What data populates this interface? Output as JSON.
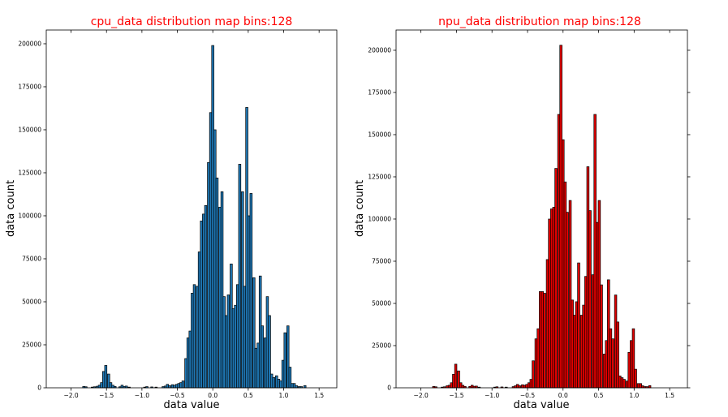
{
  "chart_data": [
    {
      "type": "bar",
      "title": "cpu_data distribution map bins:128",
      "xlabel": "data value",
      "ylabel": "data count",
      "xlim": [
        -2.35,
        1.75
      ],
      "ylim": [
        0,
        208000
      ],
      "xticks": [
        "-2.0",
        "-1.5",
        "-1.0",
        "-0.5",
        "0.0",
        "0.5",
        "1.0",
        "1.5"
      ],
      "yticks": [
        "0",
        "25000",
        "50000",
        "75000",
        "100000",
        "125000",
        "150000",
        "175000",
        "200000"
      ],
      "bar_color": "#1f77b4",
      "bin_width": 0.032,
      "bins": [
        {
          "x": -1.82,
          "y": 800
        },
        {
          "x": -1.79,
          "y": 600
        },
        {
          "x": -1.7,
          "y": 400
        },
        {
          "x": -1.67,
          "y": 600
        },
        {
          "x": -1.63,
          "y": 900
        },
        {
          "x": -1.6,
          "y": 1500
        },
        {
          "x": -1.57,
          "y": 3000
        },
        {
          "x": -1.54,
          "y": 9500
        },
        {
          "x": -1.51,
          "y": 13000
        },
        {
          "x": -1.47,
          "y": 8000
        },
        {
          "x": -1.44,
          "y": 3000
        },
        {
          "x": -1.41,
          "y": 1500
        },
        {
          "x": -1.38,
          "y": 800
        },
        {
          "x": -1.31,
          "y": 600
        },
        {
          "x": -1.28,
          "y": 1500
        },
        {
          "x": -1.25,
          "y": 800
        },
        {
          "x": -1.22,
          "y": 1000
        },
        {
          "x": -1.18,
          "y": 400
        },
        {
          "x": -0.96,
          "y": 400
        },
        {
          "x": -0.93,
          "y": 700
        },
        {
          "x": -0.86,
          "y": 500
        },
        {
          "x": -0.8,
          "y": 400
        },
        {
          "x": -0.7,
          "y": 700
        },
        {
          "x": -0.67,
          "y": 1000
        },
        {
          "x": -0.64,
          "y": 2000
        },
        {
          "x": -0.61,
          "y": 1200
        },
        {
          "x": -0.57,
          "y": 1800
        },
        {
          "x": -0.54,
          "y": 1500
        },
        {
          "x": -0.51,
          "y": 2000
        },
        {
          "x": -0.48,
          "y": 2500
        },
        {
          "x": -0.45,
          "y": 3000
        },
        {
          "x": -0.42,
          "y": 4000
        },
        {
          "x": -0.38,
          "y": 17000
        },
        {
          "x": -0.35,
          "y": 29000
        },
        {
          "x": -0.32,
          "y": 33000
        },
        {
          "x": -0.29,
          "y": 55000
        },
        {
          "x": -0.26,
          "y": 60000
        },
        {
          "x": -0.22,
          "y": 59000
        },
        {
          "x": -0.19,
          "y": 79000
        },
        {
          "x": -0.16,
          "y": 97000
        },
        {
          "x": -0.13,
          "y": 101000
        },
        {
          "x": -0.1,
          "y": 106000
        },
        {
          "x": -0.06,
          "y": 131000
        },
        {
          "x": -0.03,
          "y": 160000
        },
        {
          "x": 0.0,
          "y": 199000
        },
        {
          "x": 0.03,
          "y": 150000
        },
        {
          "x": 0.06,
          "y": 122000
        },
        {
          "x": 0.1,
          "y": 105000
        },
        {
          "x": 0.13,
          "y": 114000
        },
        {
          "x": 0.16,
          "y": 53000
        },
        {
          "x": 0.19,
          "y": 42000
        },
        {
          "x": 0.22,
          "y": 54000
        },
        {
          "x": 0.26,
          "y": 72000
        },
        {
          "x": 0.29,
          "y": 46000
        },
        {
          "x": 0.32,
          "y": 48000
        },
        {
          "x": 0.35,
          "y": 60000
        },
        {
          "x": 0.38,
          "y": 130000
        },
        {
          "x": 0.42,
          "y": 114000
        },
        {
          "x": 0.45,
          "y": 59000
        },
        {
          "x": 0.48,
          "y": 163000
        },
        {
          "x": 0.51,
          "y": 100000
        },
        {
          "x": 0.54,
          "y": 113000
        },
        {
          "x": 0.58,
          "y": 64000
        },
        {
          "x": 0.61,
          "y": 23000
        },
        {
          "x": 0.64,
          "y": 26000
        },
        {
          "x": 0.67,
          "y": 65000
        },
        {
          "x": 0.7,
          "y": 36000
        },
        {
          "x": 0.74,
          "y": 29000
        },
        {
          "x": 0.77,
          "y": 53000
        },
        {
          "x": 0.8,
          "y": 42000
        },
        {
          "x": 0.83,
          "y": 8000
        },
        {
          "x": 0.86,
          "y": 6000
        },
        {
          "x": 0.9,
          "y": 7000
        },
        {
          "x": 0.93,
          "y": 5000
        },
        {
          "x": 0.96,
          "y": 4000
        },
        {
          "x": 0.99,
          "y": 16000
        },
        {
          "x": 1.02,
          "y": 32000
        },
        {
          "x": 1.06,
          "y": 36000
        },
        {
          "x": 1.09,
          "y": 12000
        },
        {
          "x": 1.12,
          "y": 2500
        },
        {
          "x": 1.15,
          "y": 2500
        },
        {
          "x": 1.18,
          "y": 1200
        },
        {
          "x": 1.22,
          "y": 700
        },
        {
          "x": 1.25,
          "y": 700
        },
        {
          "x": 1.3,
          "y": 1300
        }
      ]
    },
    {
      "type": "bar",
      "title": "npu_data distribution map bins:128",
      "xlabel": "data value",
      "ylabel": "data count",
      "xlim": [
        -2.35,
        1.75
      ],
      "ylim": [
        0,
        212000
      ],
      "xticks": [
        "-2.0",
        "-1.5",
        "-1.0",
        "-0.5",
        "0.0",
        "0.5",
        "1.0",
        "1.5"
      ],
      "yticks": [
        "0",
        "25000",
        "50000",
        "75000",
        "100000",
        "125000",
        "150000",
        "175000",
        "200000"
      ],
      "bar_color": "#e00000",
      "bin_width": 0.032,
      "bins": [
        {
          "x": -1.82,
          "y": 800
        },
        {
          "x": -1.79,
          "y": 600
        },
        {
          "x": -1.7,
          "y": 400
        },
        {
          "x": -1.67,
          "y": 600
        },
        {
          "x": -1.63,
          "y": 1200
        },
        {
          "x": -1.6,
          "y": 1500
        },
        {
          "x": -1.57,
          "y": 3000
        },
        {
          "x": -1.54,
          "y": 8000
        },
        {
          "x": -1.51,
          "y": 14000
        },
        {
          "x": -1.47,
          "y": 10000
        },
        {
          "x": -1.44,
          "y": 3000
        },
        {
          "x": -1.41,
          "y": 1500
        },
        {
          "x": -1.38,
          "y": 800
        },
        {
          "x": -1.31,
          "y": 800
        },
        {
          "x": -1.28,
          "y": 1500
        },
        {
          "x": -1.25,
          "y": 900
        },
        {
          "x": -1.22,
          "y": 1000
        },
        {
          "x": -1.18,
          "y": 400
        },
        {
          "x": -0.96,
          "y": 400
        },
        {
          "x": -0.93,
          "y": 600
        },
        {
          "x": -0.86,
          "y": 500
        },
        {
          "x": -0.8,
          "y": 400
        },
        {
          "x": -0.7,
          "y": 700
        },
        {
          "x": -0.67,
          "y": 1200
        },
        {
          "x": -0.64,
          "y": 2000
        },
        {
          "x": -0.61,
          "y": 1200
        },
        {
          "x": -0.57,
          "y": 1800
        },
        {
          "x": -0.54,
          "y": 1500
        },
        {
          "x": -0.51,
          "y": 2000
        },
        {
          "x": -0.48,
          "y": 3000
        },
        {
          "x": -0.45,
          "y": 5000
        },
        {
          "x": -0.42,
          "y": 16000
        },
        {
          "x": -0.38,
          "y": 29000
        },
        {
          "x": -0.35,
          "y": 35000
        },
        {
          "x": -0.32,
          "y": 57000
        },
        {
          "x": -0.29,
          "y": 57000
        },
        {
          "x": -0.26,
          "y": 56000
        },
        {
          "x": -0.22,
          "y": 76000
        },
        {
          "x": -0.19,
          "y": 100000
        },
        {
          "x": -0.16,
          "y": 106000
        },
        {
          "x": -0.13,
          "y": 107000
        },
        {
          "x": -0.1,
          "y": 130000
        },
        {
          "x": -0.06,
          "y": 162000
        },
        {
          "x": -0.03,
          "y": 203000
        },
        {
          "x": 0.0,
          "y": 147000
        },
        {
          "x": 0.03,
          "y": 122000
        },
        {
          "x": 0.06,
          "y": 104000
        },
        {
          "x": 0.1,
          "y": 111000
        },
        {
          "x": 0.13,
          "y": 52000
        },
        {
          "x": 0.16,
          "y": 43000
        },
        {
          "x": 0.19,
          "y": 51000
        },
        {
          "x": 0.22,
          "y": 74000
        },
        {
          "x": 0.26,
          "y": 43000
        },
        {
          "x": 0.29,
          "y": 49000
        },
        {
          "x": 0.32,
          "y": 66000
        },
        {
          "x": 0.35,
          "y": 131000
        },
        {
          "x": 0.38,
          "y": 105000
        },
        {
          "x": 0.42,
          "y": 67000
        },
        {
          "x": 0.45,
          "y": 162000
        },
        {
          "x": 0.48,
          "y": 98000
        },
        {
          "x": 0.51,
          "y": 111000
        },
        {
          "x": 0.54,
          "y": 61000
        },
        {
          "x": 0.58,
          "y": 20000
        },
        {
          "x": 0.61,
          "y": 28000
        },
        {
          "x": 0.64,
          "y": 64000
        },
        {
          "x": 0.67,
          "y": 35000
        },
        {
          "x": 0.7,
          "y": 29000
        },
        {
          "x": 0.74,
          "y": 55000
        },
        {
          "x": 0.77,
          "y": 39000
        },
        {
          "x": 0.8,
          "y": 7000
        },
        {
          "x": 0.83,
          "y": 6000
        },
        {
          "x": 0.86,
          "y": 5000
        },
        {
          "x": 0.9,
          "y": 4000
        },
        {
          "x": 0.93,
          "y": 21000
        },
        {
          "x": 0.96,
          "y": 28000
        },
        {
          "x": 0.99,
          "y": 35000
        },
        {
          "x": 1.02,
          "y": 11000
        },
        {
          "x": 1.06,
          "y": 2500
        },
        {
          "x": 1.09,
          "y": 2500
        },
        {
          "x": 1.12,
          "y": 1200
        },
        {
          "x": 1.15,
          "y": 700
        },
        {
          "x": 1.18,
          "y": 700
        },
        {
          "x": 1.22,
          "y": 1300
        }
      ]
    }
  ]
}
